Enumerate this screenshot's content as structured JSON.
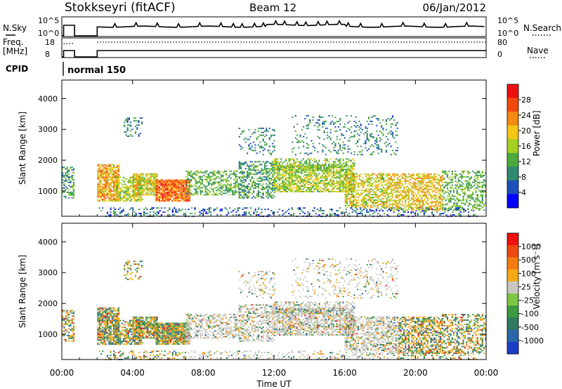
{
  "header": {
    "title": "Stokkseyri (fitACF)",
    "beam": "Beam 12",
    "date": "06/Jan/2012"
  },
  "params": {
    "nsky_label": "N.Sky",
    "nsearch_label": "N.Search",
    "nsky_ticks": [
      "10^5",
      "10^0"
    ],
    "nsearch_ticks": [
      "10^5",
      "10^0"
    ],
    "freq_label_line1": "Freq.",
    "freq_label_line2": "[MHz]",
    "freq_ticks": [
      "18",
      "8"
    ],
    "nave_label": "Nave",
    "nave_ticks": [
      "80",
      "0"
    ],
    "cpid_label": "CPID",
    "cpid_value": "normal 150"
  },
  "chart_data": [
    {
      "type": "heatmap",
      "name": "power",
      "ylabel": "Slant Range [km]",
      "xlabel": "Time UT",
      "xlim_hours": [
        0,
        24
      ],
      "x_ticks": [
        "00:00",
        "04:00",
        "08:00",
        "12:00",
        "16:00",
        "20:00",
        "00:00"
      ],
      "ylim": [
        180,
        4600
      ],
      "y_ticks": [
        1000,
        2000,
        3000,
        4000
      ],
      "colorbar_label": "Power [dB]",
      "colorbar_ticks": [
        "28",
        "24",
        "20",
        "16",
        "12",
        "8",
        "4"
      ],
      "colorbar_colors": [
        "#0000ff",
        "#1f4fb8",
        "#2f8a6e",
        "#4aaa3c",
        "#a4d021",
        "#f5c518",
        "#f48a12",
        "#f24a0c",
        "#ee1010"
      ]
    },
    {
      "type": "heatmap",
      "name": "velocity",
      "ylabel": "Slant Range [km]",
      "xlabel": "Time UT",
      "xlim_hours": [
        0,
        24
      ],
      "x_ticks": [
        "00:00",
        "04:00",
        "08:00",
        "12:00",
        "16:00",
        "20:00",
        "00:00"
      ],
      "ylim": [
        180,
        4600
      ],
      "y_ticks": [
        1000,
        2000,
        3000,
        4000
      ],
      "colorbar_label": "Velocity [m s⁻¹]",
      "colorbar_ticks": [
        "1000",
        "500",
        "100",
        "25",
        "-25",
        "-100",
        "-500",
        "-1000"
      ],
      "colorbar_colors": [
        "#1a3cc8",
        "#2a66a8",
        "#2f7a60",
        "#3e9a3e",
        "#7cc840",
        "#c8c8c0",
        "#f5a818",
        "#f27c12",
        "#ee4a10",
        "#ee1010"
      ]
    }
  ],
  "time_axis_label": "Time UT"
}
